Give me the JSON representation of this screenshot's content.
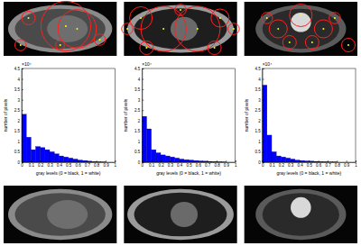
{
  "chart_data": [
    {
      "type": "histogram",
      "x_label": "gray levels (0 = black, 1 = white)",
      "y_label": "number of pixels",
      "annotation": "×10⁴",
      "bins": [
        0,
        0.05,
        0.1,
        0.15,
        0.2,
        0.25,
        0.3,
        0.35,
        0.4,
        0.45,
        0.5,
        0.55,
        0.6,
        0.65,
        0.7,
        0.75,
        0.8,
        0.85,
        0.9,
        0.95,
        1
      ],
      "values": [
        2.3,
        1.2,
        0.6,
        0.75,
        0.7,
        0.6,
        0.5,
        0.4,
        0.3,
        0.25,
        0.2,
        0.15,
        0.1,
        0.08,
        0.05,
        0.03,
        0.02,
        0.01,
        0,
        0
      ],
      "color": "#0000ff",
      "xlim": [
        0,
        1
      ],
      "xticks": [
        0,
        0.1,
        0.2,
        0.3,
        0.4,
        0.5,
        0.6,
        0.7,
        0.8,
        0.9,
        1
      ],
      "ylim": [
        0,
        4.5
      ],
      "yticks": [
        0,
        0.5,
        1,
        1.5,
        2,
        2.5,
        3,
        3.5,
        4,
        4.5
      ]
    },
    {
      "type": "histogram",
      "x_label": "gray levels (0 = black, 1 = white)",
      "y_label": "number of pixels",
      "annotation": "×10⁴",
      "bins": [
        0,
        0.05,
        0.1,
        0.15,
        0.2,
        0.25,
        0.3,
        0.35,
        0.4,
        0.45,
        0.5,
        0.55,
        0.6,
        0.65,
        0.7,
        0.75,
        0.8,
        0.85,
        0.9,
        0.95,
        1
      ],
      "values": [
        2.2,
        1.6,
        0.6,
        0.45,
        0.35,
        0.3,
        0.25,
        0.2,
        0.15,
        0.12,
        0.1,
        0.08,
        0.06,
        0.05,
        0.04,
        0.03,
        0.02,
        0.01,
        0,
        0
      ],
      "color": "#0000ff",
      "xlim": [
        0,
        1
      ],
      "xticks": [
        0,
        0.1,
        0.2,
        0.3,
        0.4,
        0.5,
        0.6,
        0.7,
        0.8,
        0.9,
        1
      ],
      "ylim": [
        0,
        4.5
      ],
      "yticks": [
        0,
        0.5,
        1,
        1.5,
        2,
        2.5,
        3,
        3.5,
        4,
        4.5
      ]
    },
    {
      "type": "histogram",
      "x_label": "gray levels (0 = black, 1 = white)",
      "y_label": "number of pixels",
      "annotation": "×10⁴",
      "bins": [
        0,
        0.05,
        0.1,
        0.15,
        0.2,
        0.25,
        0.3,
        0.35,
        0.4,
        0.45,
        0.5,
        0.55,
        0.6,
        0.65,
        0.7,
        0.75,
        0.8,
        0.85,
        0.9,
        0.95,
        1
      ],
      "values": [
        3.7,
        1.3,
        0.5,
        0.3,
        0.25,
        0.2,
        0.15,
        0.1,
        0.08,
        0.06,
        0.05,
        0.04,
        0.03,
        0.02,
        0.01,
        0.01,
        0,
        0,
        0,
        0
      ],
      "color": "#0000ff",
      "xlim": [
        0,
        1
      ],
      "xticks": [
        0,
        0.1,
        0.2,
        0.3,
        0.4,
        0.5,
        0.6,
        0.7,
        0.8,
        0.9,
        1
      ],
      "ylim": [
        0,
        4.5
      ],
      "yticks": [
        0,
        0.5,
        1,
        1.5,
        2,
        2.5,
        3,
        3.5,
        4,
        4.5
      ]
    }
  ]
}
